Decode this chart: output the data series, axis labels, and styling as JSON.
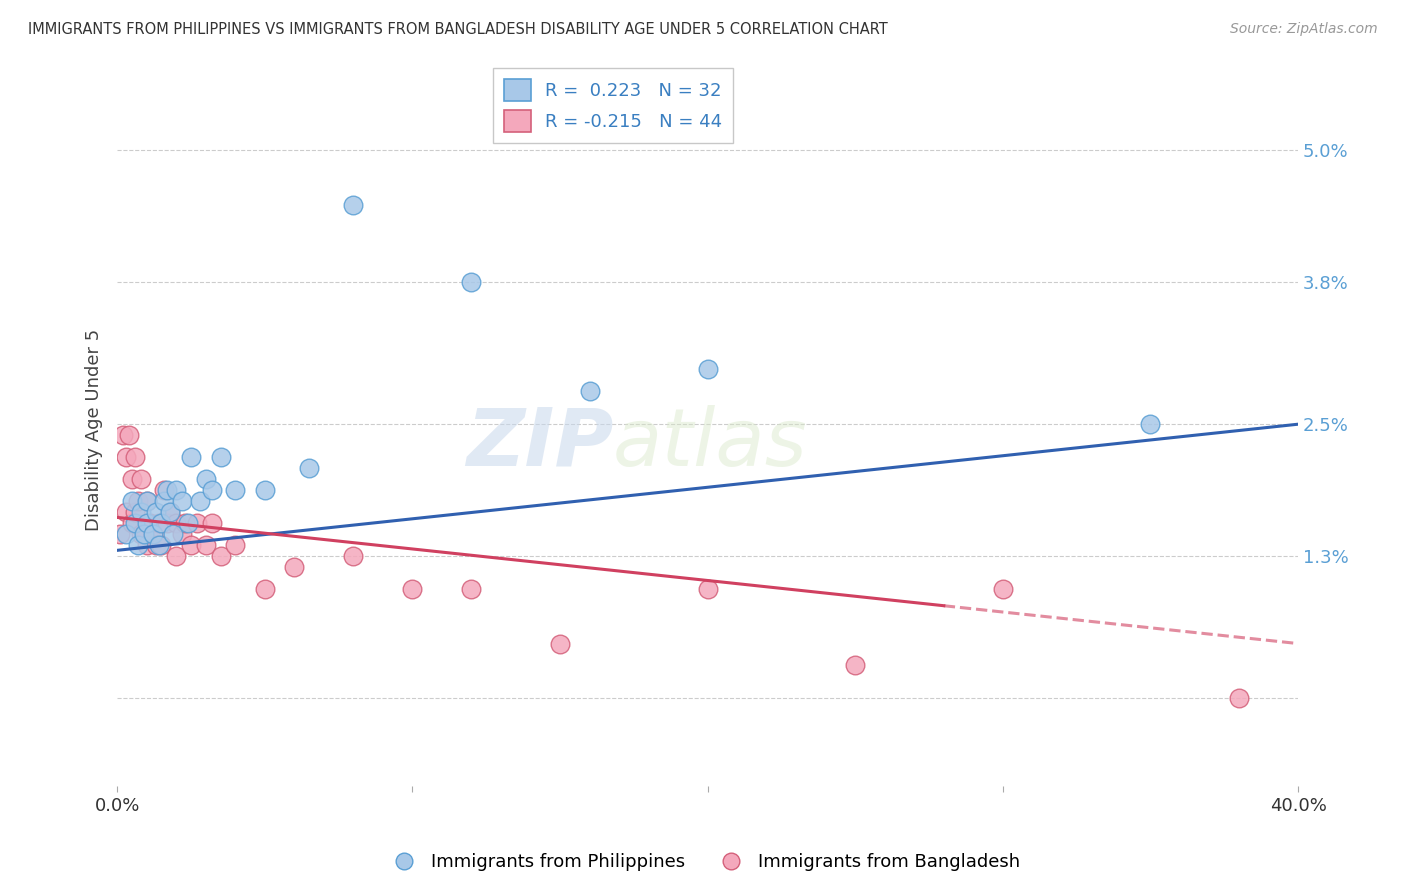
{
  "title": "IMMIGRANTS FROM PHILIPPINES VS IMMIGRANTS FROM BANGLADESH DISABILITY AGE UNDER 5 CORRELATION CHART",
  "source": "Source: ZipAtlas.com",
  "ylabel": "Disability Age Under 5",
  "y_ticks": [
    0.0,
    0.013,
    0.025,
    0.038,
    0.05
  ],
  "y_tick_labels": [
    "",
    "1.3%",
    "2.5%",
    "3.8%",
    "5.0%"
  ],
  "x_range": [
    0.0,
    0.4
  ],
  "y_range": [
    -0.008,
    0.057
  ],
  "philippines_color": "#a8c8e8",
  "philippines_edge": "#5a9fd4",
  "bangladesh_color": "#f4a8bc",
  "bangladesh_edge": "#d4607a",
  "philippines_line_color": "#3060b0",
  "bangladesh_line_color": "#d04060",
  "watermark_text": "ZIPatlas",
  "background_color": "#ffffff",
  "grid_color": "#cccccc",
  "philippines_x": [
    0.003,
    0.005,
    0.006,
    0.007,
    0.008,
    0.009,
    0.01,
    0.01,
    0.012,
    0.013,
    0.014,
    0.015,
    0.016,
    0.017,
    0.018,
    0.019,
    0.02,
    0.022,
    0.024,
    0.025,
    0.028,
    0.03,
    0.032,
    0.035,
    0.04,
    0.05,
    0.065,
    0.08,
    0.12,
    0.16,
    0.2,
    0.35
  ],
  "philippines_y": [
    0.015,
    0.018,
    0.016,
    0.014,
    0.017,
    0.015,
    0.016,
    0.018,
    0.015,
    0.017,
    0.014,
    0.016,
    0.018,
    0.019,
    0.017,
    0.015,
    0.019,
    0.018,
    0.016,
    0.022,
    0.018,
    0.02,
    0.019,
    0.022,
    0.019,
    0.019,
    0.021,
    0.045,
    0.038,
    0.028,
    0.03,
    0.025
  ],
  "bangladesh_x": [
    0.001,
    0.002,
    0.003,
    0.003,
    0.004,
    0.005,
    0.005,
    0.006,
    0.006,
    0.007,
    0.008,
    0.008,
    0.009,
    0.01,
    0.01,
    0.011,
    0.012,
    0.013,
    0.014,
    0.015,
    0.015,
    0.016,
    0.017,
    0.018,
    0.02,
    0.02,
    0.022,
    0.023,
    0.025,
    0.027,
    0.03,
    0.032,
    0.035,
    0.04,
    0.05,
    0.06,
    0.08,
    0.1,
    0.12,
    0.15,
    0.2,
    0.25,
    0.3,
    0.38
  ],
  "bangladesh_y": [
    0.015,
    0.024,
    0.022,
    0.017,
    0.024,
    0.02,
    0.016,
    0.022,
    0.017,
    0.018,
    0.015,
    0.02,
    0.015,
    0.018,
    0.014,
    0.016,
    0.015,
    0.014,
    0.016,
    0.016,
    0.014,
    0.019,
    0.016,
    0.017,
    0.016,
    0.013,
    0.015,
    0.016,
    0.014,
    0.016,
    0.014,
    0.016,
    0.013,
    0.014,
    0.01,
    0.012,
    0.013,
    0.01,
    0.01,
    0.005,
    0.01,
    0.003,
    0.01,
    0.0
  ],
  "phil_trend_x0": 0.0,
  "phil_trend_y0": 0.0135,
  "phil_trend_x1": 0.4,
  "phil_trend_y1": 0.025,
  "bang_trend_x0": 0.0,
  "bang_trend_y0": 0.0165,
  "bang_trend_x1": 0.4,
  "bang_trend_y1": 0.005
}
